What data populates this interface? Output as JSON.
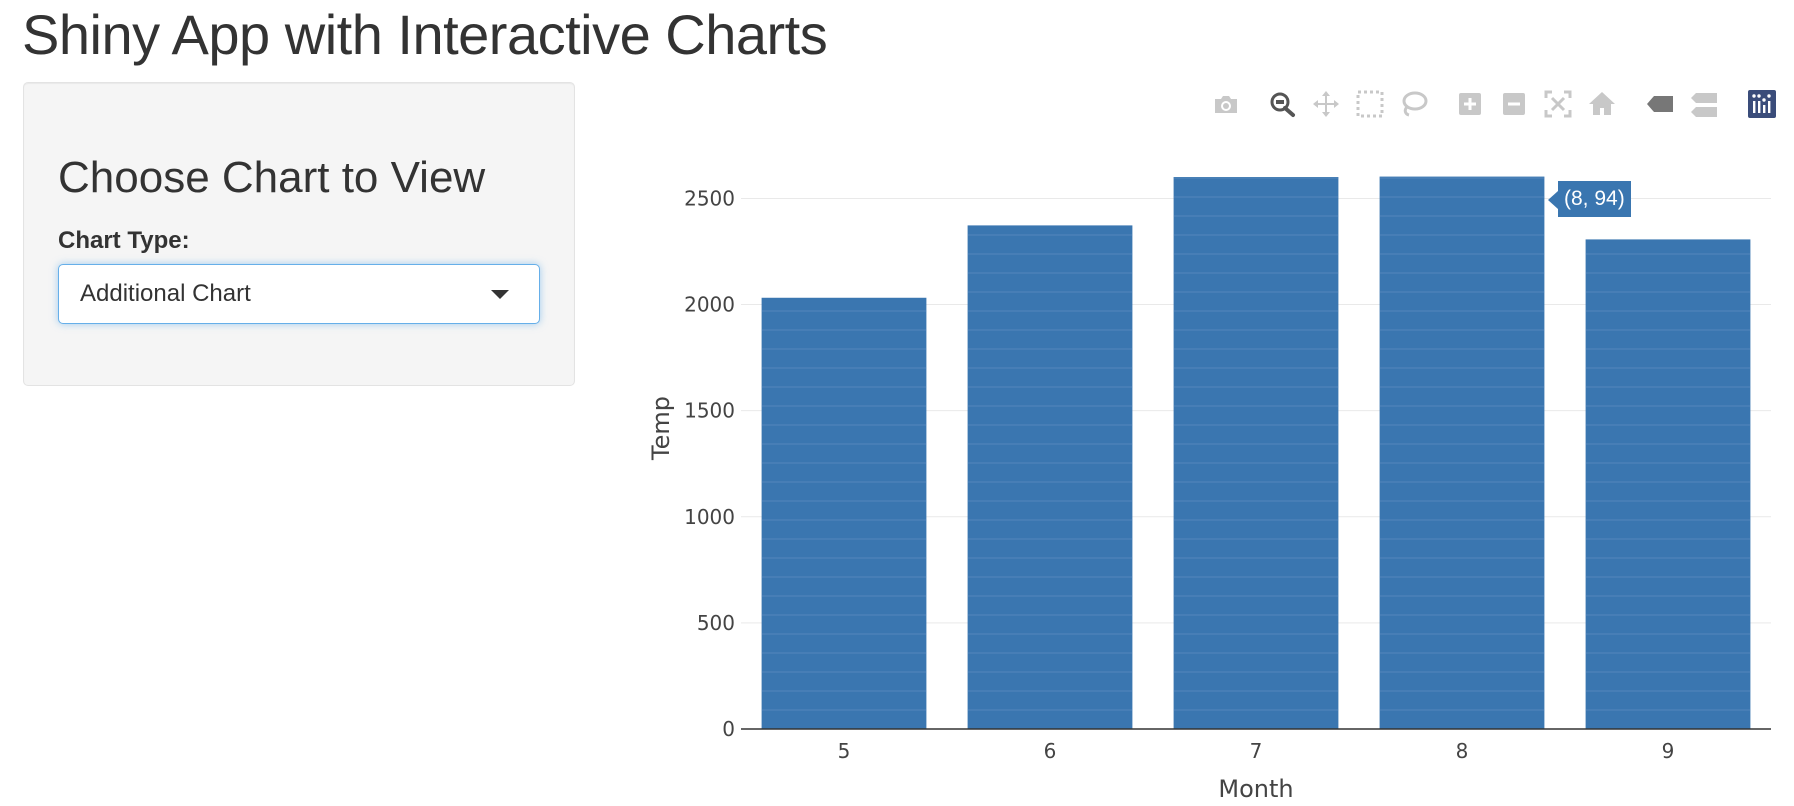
{
  "page": {
    "title": "Shiny App with Interactive Charts"
  },
  "sidebar": {
    "heading": "Choose Chart to View",
    "chart_type_label": "Chart Type:",
    "chart_type_selected": "Additional Chart"
  },
  "modebar": {
    "buttons": [
      {
        "name": "camera-icon"
      },
      {
        "name": "zoom-icon",
        "active": true
      },
      {
        "name": "pan-icon"
      },
      {
        "name": "box-select-icon"
      },
      {
        "name": "lasso-select-icon"
      },
      {
        "name": "zoom-in-icon"
      },
      {
        "name": "zoom-out-icon"
      },
      {
        "name": "autoscale-icon"
      },
      {
        "name": "reset-axes-icon"
      },
      {
        "name": "hover-closest-icon"
      },
      {
        "name": "hover-compare-icon"
      },
      {
        "name": "plotly-logo-icon"
      }
    ]
  },
  "tooltip": {
    "text": "(8, 94)"
  },
  "chart_data": {
    "type": "bar",
    "categories": [
      "5",
      "6",
      "7",
      "8",
      "9"
    ],
    "values": [
      2032,
      2373,
      2601,
      2603,
      2307
    ],
    "xlabel": "Month",
    "ylabel": "Temp",
    "ylim": [
      0,
      2700
    ],
    "yticks": [
      0,
      500,
      1000,
      1500,
      2000,
      2500
    ],
    "grid": true,
    "legend": "none",
    "bar_color": "#3a76b0",
    "segment_line_color": "#5f8fc0"
  }
}
